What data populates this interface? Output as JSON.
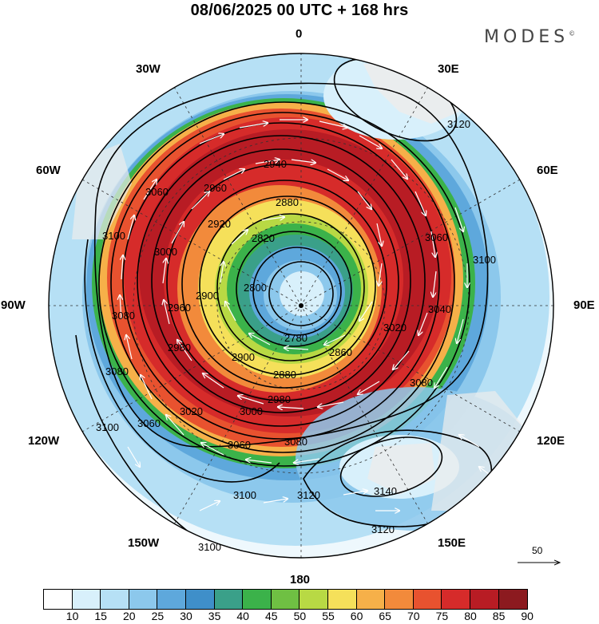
{
  "title": "08/06/2025  00 UTC  + 168 hrs",
  "brand": "MODES",
  "brand_mark": "©",
  "longitude_labels": {
    "deg0": "0",
    "deg30e": "30E",
    "deg60e": "60E",
    "deg90e": "90E",
    "deg120e": "120E",
    "deg150e": "150E",
    "deg180": "180",
    "deg150w": "150W",
    "deg120w": "120W",
    "deg90w": "90W",
    "deg60w": "60W",
    "deg30w": "30W"
  },
  "reference_vector_label": "50",
  "contour_labels": [
    "2780",
    "2800",
    "2820",
    "2860",
    "2880",
    "2900",
    "2920",
    "2940",
    "2960",
    "2980",
    "3000",
    "3020",
    "3040",
    "3060",
    "3080",
    "3100",
    "3120",
    "3140"
  ],
  "colorbar": {
    "ticks": [
      "10",
      "15",
      "20",
      "25",
      "30",
      "35",
      "40",
      "45",
      "50",
      "55",
      "60",
      "65",
      "70",
      "75",
      "80",
      "85",
      "90"
    ],
    "colors": [
      "#ffffff",
      "#d8f0fb",
      "#b6e0f5",
      "#8cc8ec",
      "#5ea8dc",
      "#3f8fc9",
      "#3aa089",
      "#3bb24a",
      "#6fc043",
      "#b8d944",
      "#f5e05a",
      "#f6b049",
      "#f28a3b",
      "#e8522f",
      "#d62b2a",
      "#b81c24",
      "#8c1a1f"
    ]
  },
  "map_data": {
    "field": "wind speed shaded, geopotential height contours, wind vectors",
    "projection": "south polar stereographic",
    "height_min": 2780,
    "height_max": 3140,
    "high_center_label": "3140",
    "low_center_label": "2780"
  }
}
